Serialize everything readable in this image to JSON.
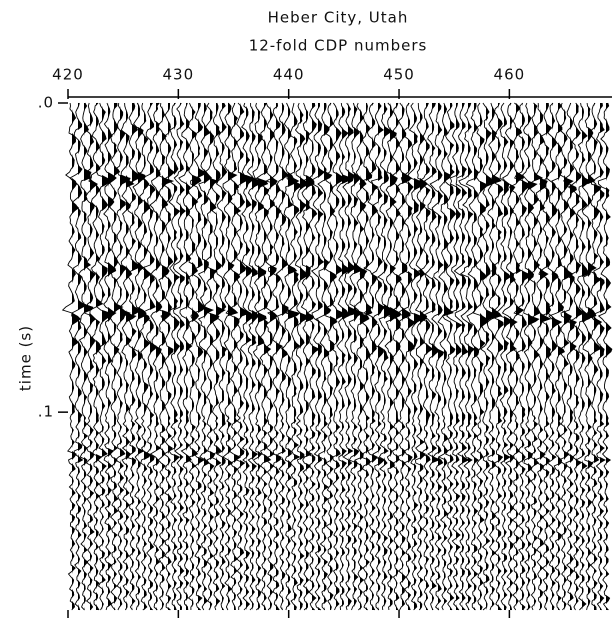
{
  "chart_data": {
    "type": "seismic",
    "title": "Heber City, Utah",
    "subtitle": "12-fold CDP numbers",
    "ylabel": "time (s)",
    "xlim": [
      420,
      469.3
    ],
    "xticks": [
      420,
      430,
      440,
      450,
      460
    ],
    "ylim": [
      0,
      0.164
    ],
    "yticks": [
      {
        "value": 0,
        "label": ".0"
      },
      {
        "value": 0.1,
        "label": ".1"
      }
    ]
  }
}
